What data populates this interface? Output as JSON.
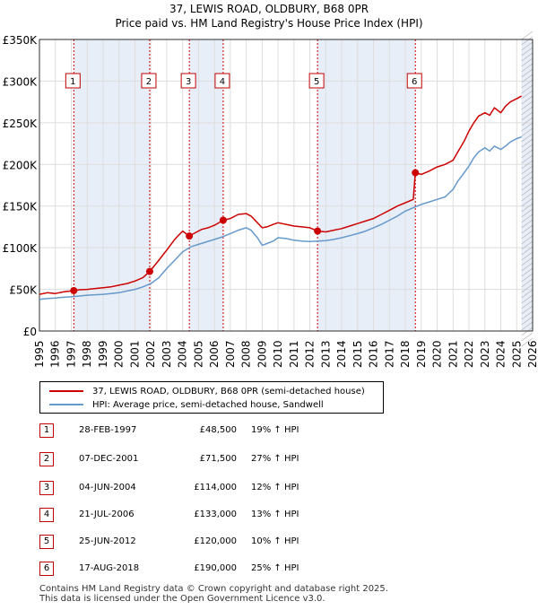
{
  "title_line1": "37, LEWIS ROAD, OLDBURY, B68 0PR",
  "title_line2": "Price paid vs. HM Land Registry's House Price Index (HPI)",
  "colors": {
    "property": "#cc0000",
    "hpi": "#6699cc",
    "shade": "#e8eef8",
    "marker_box": "#c00000",
    "grid": "#dddddd"
  },
  "chart_data": {
    "type": "line",
    "title": "Price paid vs. HM Land Registry's House Price Index (HPI)",
    "xlabel": "",
    "ylabel": "",
    "xlim": [
      1995,
      2026
    ],
    "ylim": [
      0,
      350000
    ],
    "yticks": [
      0,
      50000,
      100000,
      150000,
      200000,
      250000,
      300000,
      350000
    ],
    "ytick_labels": [
      "£0",
      "£50K",
      "£100K",
      "£150K",
      "£200K",
      "£250K",
      "£300K",
      "£350K"
    ],
    "xtick_labels": [
      "1995",
      "1996",
      "1997",
      "1998",
      "1999",
      "2000",
      "2001",
      "2002",
      "2003",
      "2004",
      "2005",
      "2006",
      "2007",
      "2008",
      "2009",
      "2010",
      "2011",
      "2012",
      "2013",
      "2014",
      "2015",
      "2016",
      "2017",
      "2018",
      "2019",
      "2020",
      "2021",
      "2022",
      "2023",
      "2024",
      "2025",
      "2026"
    ],
    "series": [
      {
        "name": "37, LEWIS ROAD, OLDBURY, B68 0PR (semi-detached house)",
        "color": "#cc0000",
        "x": [
          1995.0,
          1995.5,
          1996.0,
          1996.5,
          1997.16,
          1997.5,
          1998.0,
          1998.5,
          1999.0,
          1999.5,
          2000.0,
          2000.5,
          2001.0,
          2001.5,
          2001.93,
          2002.5,
          2003.0,
          2003.5,
          2004.0,
          2004.42,
          2004.8,
          2005.2,
          2005.6,
          2006.0,
          2006.55,
          2007.0,
          2007.5,
          2008.0,
          2008.3,
          2008.7,
          2009.0,
          2009.3,
          2009.7,
          2010.0,
          2010.5,
          2011.0,
          2011.5,
          2012.0,
          2012.48,
          2013.0,
          2013.5,
          2014.0,
          2014.5,
          2015.0,
          2015.5,
          2016.0,
          2016.5,
          2017.0,
          2017.5,
          2018.0,
          2018.5,
          2018.63,
          2019.0,
          2019.5,
          2020.0,
          2020.5,
          2021.0,
          2021.3,
          2021.7,
          2022.0,
          2022.3,
          2022.6,
          2023.0,
          2023.3,
          2023.6,
          2024.0,
          2024.3,
          2024.6,
          2025.0,
          2025.3
        ],
        "y": [
          44000,
          46000,
          45000,
          47000,
          48500,
          49500,
          50000,
          51000,
          52000,
          53000,
          55000,
          57000,
          60000,
          64000,
          71500,
          85000,
          97000,
          110000,
          120000,
          114000,
          118000,
          122000,
          124000,
          127000,
          133000,
          135000,
          140000,
          141000,
          138000,
          130000,
          124000,
          125000,
          128000,
          130000,
          128000,
          126000,
          125000,
          124000,
          120000,
          119000,
          121000,
          123000,
          126000,
          129000,
          132000,
          135000,
          140000,
          145000,
          150000,
          154000,
          158000,
          190000,
          188000,
          192000,
          197000,
          200000,
          205000,
          215000,
          228000,
          240000,
          250000,
          258000,
          262000,
          259000,
          268000,
          262000,
          270000,
          275000,
          279000,
          282000
        ]
      },
      {
        "name": "HPI: Average price, semi-detached house, Sandwell",
        "color": "#6699cc",
        "x": [
          1995.0,
          1995.5,
          1996.0,
          1996.5,
          1997.0,
          1997.5,
          1998.0,
          1998.5,
          1999.0,
          1999.5,
          2000.0,
          2000.5,
          2001.0,
          2001.5,
          2002.0,
          2002.5,
          2003.0,
          2003.5,
          2004.0,
          2004.5,
          2005.0,
          2005.5,
          2006.0,
          2006.5,
          2007.0,
          2007.5,
          2008.0,
          2008.3,
          2008.7,
          2009.0,
          2009.3,
          2009.7,
          2010.0,
          2010.5,
          2011.0,
          2011.5,
          2012.0,
          2012.5,
          2013.0,
          2013.5,
          2014.0,
          2014.5,
          2015.0,
          2015.5,
          2016.0,
          2016.5,
          2017.0,
          2017.5,
          2018.0,
          2018.5,
          2019.0,
          2019.5,
          2020.0,
          2020.5,
          2021.0,
          2021.3,
          2021.7,
          2022.0,
          2022.3,
          2022.6,
          2023.0,
          2023.3,
          2023.6,
          2024.0,
          2024.3,
          2024.6,
          2025.0,
          2025.3
        ],
        "y": [
          38000,
          39000,
          39500,
          40500,
          41000,
          42000,
          43000,
          43500,
          44000,
          45000,
          46000,
          48000,
          50000,
          53000,
          57000,
          64000,
          75000,
          85000,
          95000,
          101000,
          104000,
          107000,
          110000,
          113000,
          117000,
          121000,
          124000,
          121000,
          112000,
          103000,
          105000,
          108000,
          112000,
          111000,
          109000,
          108000,
          107500,
          108000,
          108500,
          110000,
          112000,
          114500,
          117000,
          120000,
          124000,
          128000,
          133000,
          138000,
          144000,
          148000,
          152000,
          155000,
          158000,
          161000,
          170000,
          180000,
          190000,
          198000,
          208000,
          215000,
          220000,
          216000,
          222000,
          218000,
          222000,
          227000,
          231000,
          233000
        ]
      }
    ],
    "sales": [
      {
        "label": "1",
        "x": 1997.16,
        "y": 48500
      },
      {
        "label": "2",
        "x": 2001.93,
        "y": 71500
      },
      {
        "label": "3",
        "x": 2004.42,
        "y": 114000
      },
      {
        "label": "4",
        "x": 2006.55,
        "y": 133000
      },
      {
        "label": "5",
        "x": 2012.48,
        "y": 120000
      },
      {
        "label": "6",
        "x": 2018.63,
        "y": 190000
      }
    ],
    "shaded_ranges": [
      [
        1997.16,
        2001.93
      ],
      [
        2004.42,
        2006.55
      ],
      [
        2012.48,
        2018.63
      ],
      [
        2025.3,
        2026
      ]
    ]
  },
  "legend": {
    "property_label": "37, LEWIS ROAD, OLDBURY, B68 0PR (semi-detached house)",
    "hpi_label": "HPI: Average price, semi-detached house, Sandwell"
  },
  "transactions": [
    {
      "num": "1",
      "date": "28-FEB-1997",
      "price": "£48,500",
      "hpi": "19% ↑ HPI"
    },
    {
      "num": "2",
      "date": "07-DEC-2001",
      "price": "£71,500",
      "hpi": "27% ↑ HPI"
    },
    {
      "num": "3",
      "date": "04-JUN-2004",
      "price": "£114,000",
      "hpi": "12% ↑ HPI"
    },
    {
      "num": "4",
      "date": "21-JUL-2006",
      "price": "£133,000",
      "hpi": "13% ↑ HPI"
    },
    {
      "num": "5",
      "date": "25-JUN-2012",
      "price": "£120,000",
      "hpi": "10% ↑ HPI"
    },
    {
      "num": "6",
      "date": "17-AUG-2018",
      "price": "£190,000",
      "hpi": "25% ↑ HPI"
    }
  ],
  "footer": {
    "line1": "Contains HM Land Registry data © Crown copyright and database right 2025.",
    "line2": "This data is licensed under the Open Government Licence v3.0."
  }
}
